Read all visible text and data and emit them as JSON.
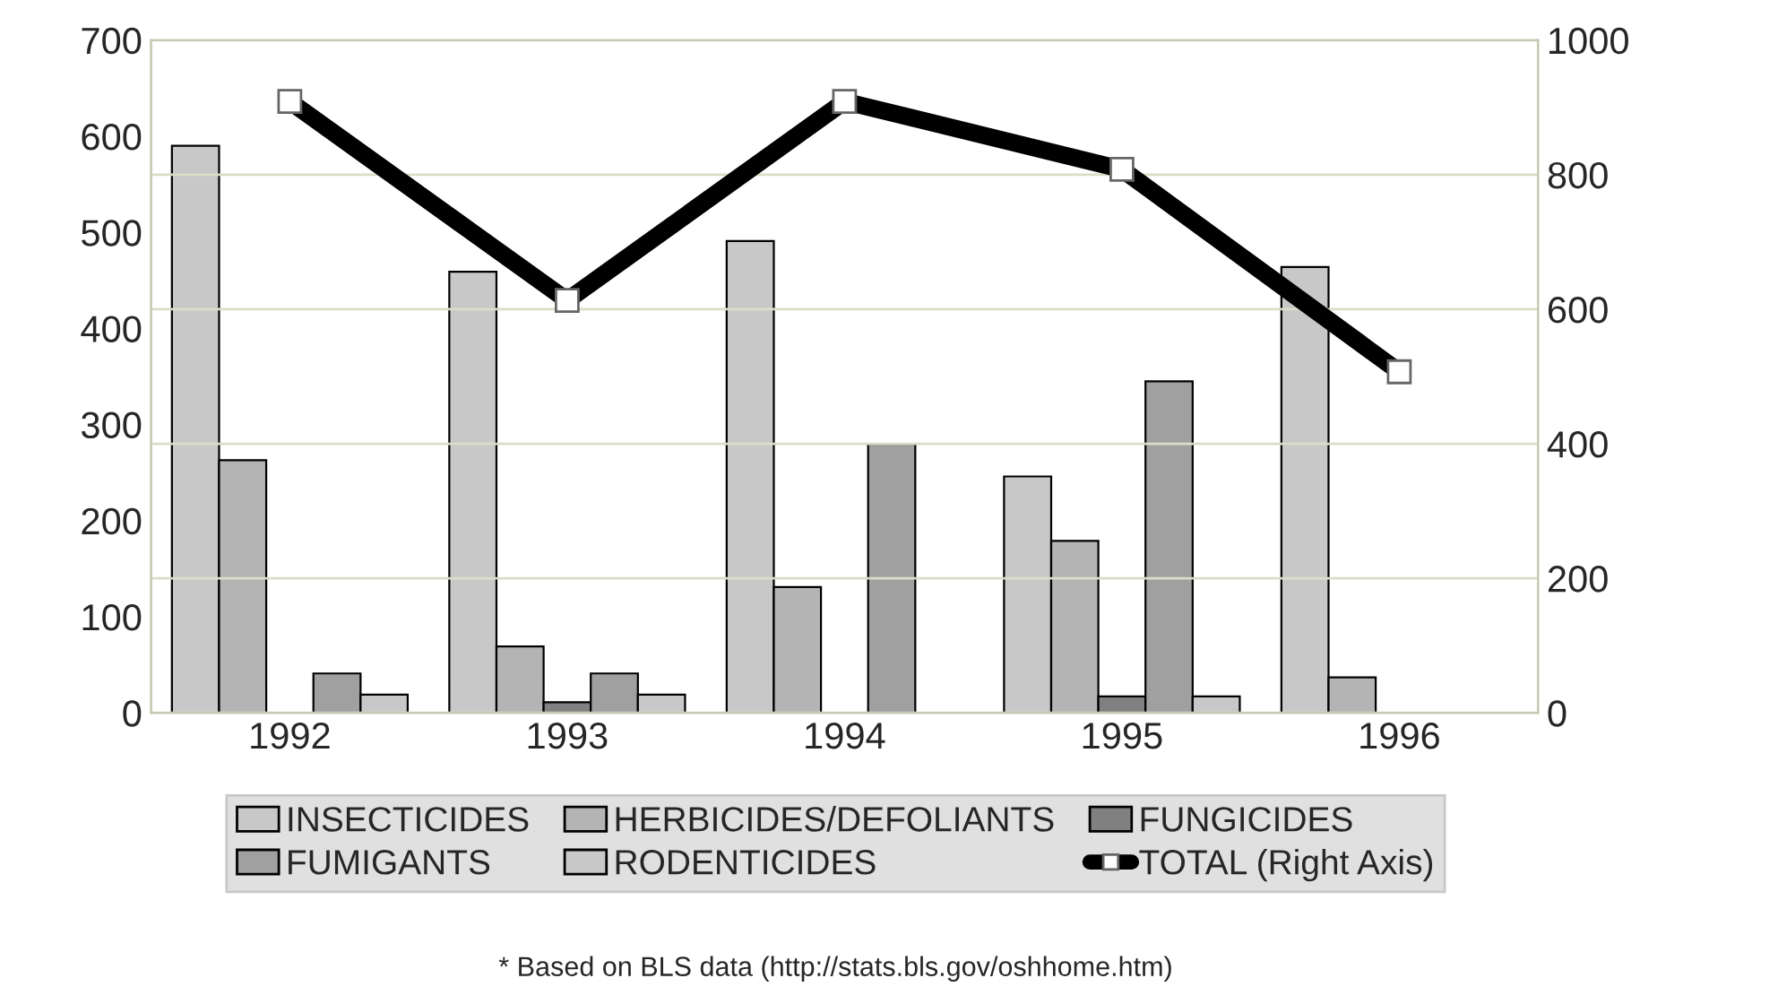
{
  "chart_data": {
    "type": "bar",
    "categories": [
      "1992",
      "1993",
      "1994",
      "1995",
      "1996"
    ],
    "series": [
      {
        "name": "INSECTICIDES",
        "color": "#c8c8c8",
        "values": [
          590,
          459,
          491,
          246,
          464
        ]
      },
      {
        "name": "HERBICIDES/DEFOLIANTS",
        "color": "#b4b4b4",
        "values": [
          263,
          69,
          131,
          179,
          37
        ]
      },
      {
        "name": "FUNGICIDES",
        "color": "#808080",
        "values": [
          null,
          11,
          null,
          17,
          null
        ]
      },
      {
        "name": "FUMIGANTS",
        "color": "#a0a0a0",
        "values": [
          41,
          41,
          280,
          345,
          null
        ]
      },
      {
        "name": "RODENTICIDES",
        "color": "#c8c8c8",
        "values": [
          19,
          19,
          null,
          17,
          null
        ]
      },
      {
        "name": "TOTAL (Right Axis)",
        "type": "line",
        "axis": "y2",
        "color": "#000000",
        "marker": "square",
        "values": [
          909,
          613,
          909,
          808,
          507
        ]
      }
    ],
    "ylim": [
      0,
      700
    ],
    "yticks": [
      0,
      100,
      200,
      300,
      400,
      500,
      600,
      700
    ],
    "y2lim": [
      0,
      1000
    ],
    "y2ticks": [
      0,
      200,
      400,
      600,
      800,
      1000
    ],
    "grid": true,
    "legend": "bottom",
    "annotations": [
      "* Based on BLS data (http://stats.bls.gov/oshhome.htm)"
    ]
  }
}
